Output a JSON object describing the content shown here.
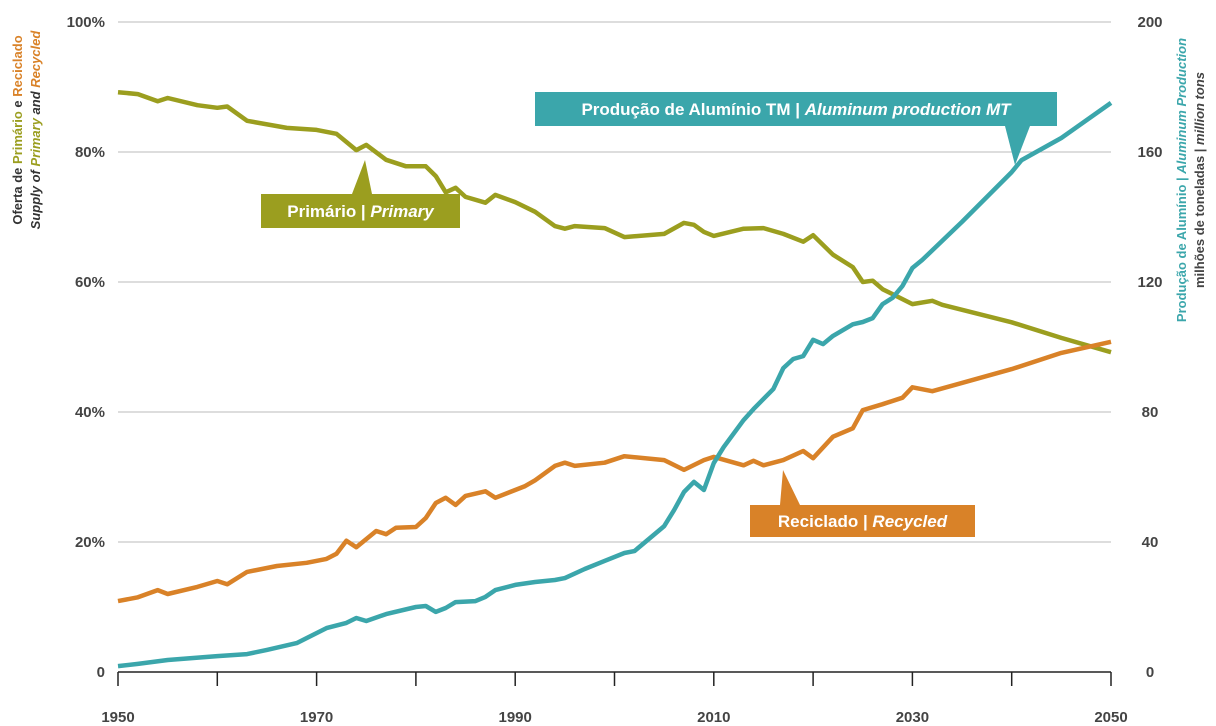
{
  "chart_data": {
    "type": "line",
    "y_title": [
      [
        {
          "text": "Oferta de ",
          "color": "#333333",
          "italic": false
        },
        {
          "text": "Primário",
          "color": "#9b9e1f",
          "italic": false
        },
        {
          "text": " e ",
          "color": "#333333",
          "italic": false
        },
        {
          "text": "Reciclado",
          "color": "#d98228",
          "italic": false
        }
      ],
      [
        {
          "text": "Supply  of ",
          "color": "#333333",
          "italic": true
        },
        {
          "text": "Primary",
          "color": "#9b9e1f",
          "italic": true
        },
        {
          "text": " and ",
          "color": "#333333",
          "italic": true
        },
        {
          "text": "Recycled",
          "color": "#d98228",
          "italic": true
        }
      ]
    ],
    "y2_title": [
      [
        {
          "text": "Produção de Alumínio | ",
          "color": "#3ba6ab",
          "italic": false
        },
        {
          "text": "Aluminum Production",
          "color": "#3ba6ab",
          "italic": true
        }
      ],
      [
        {
          "text": "milhões de toneladas | ",
          "color": "#444444",
          "italic": false
        },
        {
          "text": "million tons",
          "color": "#444444",
          "italic": true
        }
      ]
    ],
    "xlim": [
      1950,
      2050
    ],
    "xticks": [
      1950,
      1970,
      1990,
      2010,
      2030,
      2050
    ],
    "xminorticks": [
      1960,
      1980,
      2000,
      2020,
      2040
    ],
    "ylim": [
      0,
      100
    ],
    "yticks": [
      {
        "value": 0,
        "label": "0"
      },
      {
        "value": 20,
        "label": "20%"
      },
      {
        "value": 40,
        "label": "40%"
      },
      {
        "value": 60,
        "label": "60%"
      },
      {
        "value": 80,
        "label": "80%"
      },
      {
        "value": 100,
        "label": "100%"
      }
    ],
    "y2lim": [
      0,
      200
    ],
    "y2ticks": [
      0,
      40,
      80,
      120,
      160,
      200
    ],
    "grid": true,
    "series": [
      {
        "name": [
          "Primário | ",
          "Primary"
        ],
        "color": "#9b9e1f",
        "x": [
          1950,
          1952,
          1954,
          1955,
          1958,
          1960,
          1961,
          1963,
          1967,
          1970,
          1972,
          1974,
          1975,
          1977,
          1979,
          1981,
          1982,
          1983,
          1984,
          1985,
          1987,
          1988,
          1990,
          1992,
          1994,
          1995,
          1996,
          1999,
          2001,
          2005,
          2007,
          2008,
          2009,
          2010,
          2013,
          2015,
          2017,
          2019,
          2020,
          2022,
          2024,
          2025,
          2026,
          2027,
          2030,
          2032,
          2033,
          2040,
          2045,
          2050
        ],
        "values": [
          89.2,
          88.9,
          87.8,
          88.3,
          87.2,
          86.8,
          87,
          84.8,
          83.7,
          83.4,
          82.8,
          80.3,
          81.1,
          78.8,
          77.8,
          77.8,
          76.3,
          73.8,
          74.5,
          73.1,
          72.2,
          73.4,
          72.3,
          70.8,
          68.6,
          68.2,
          68.6,
          68.3,
          66.9,
          67.4,
          69.1,
          68.8,
          67.7,
          67.1,
          68.2,
          68.3,
          67.4,
          66.2,
          67.2,
          64.2,
          62.3,
          60,
          60.2,
          58.9,
          56.6,
          57.1,
          56.5,
          53.8,
          51.4,
          49.2
        ]
      },
      {
        "name": [
          "Reciclado | ",
          "Recycled"
        ],
        "color": "#d98228",
        "x": [
          1950,
          1952,
          1954,
          1955,
          1958,
          1960,
          1961,
          1963,
          1966,
          1969,
          1971,
          1972,
          1973,
          1974,
          1976,
          1977,
          1978,
          1980,
          1981,
          1982,
          1983,
          1984,
          1985,
          1987,
          1988,
          1990,
          1991,
          1992,
          1994,
          1995,
          1996,
          1999,
          2001,
          2005,
          2007,
          2009,
          2010,
          2013,
          2014,
          2015,
          2017,
          2019,
          2020,
          2022,
          2024,
          2025,
          2027,
          2029,
          2030,
          2032,
          2040,
          2045,
          2050
        ],
        "values": [
          10.9,
          11.5,
          12.6,
          12,
          13.1,
          14,
          13.5,
          15.4,
          16.3,
          16.8,
          17.4,
          18.2,
          20.2,
          19.2,
          21.7,
          21.2,
          22.2,
          22.3,
          23.7,
          26,
          26.8,
          25.7,
          27.1,
          27.8,
          26.8,
          28,
          28.6,
          29.5,
          31.7,
          32.2,
          31.7,
          32.2,
          33.2,
          32.6,
          31.1,
          32.6,
          33.1,
          31.8,
          32.5,
          31.8,
          32.6,
          34,
          32.9,
          36.2,
          37.5,
          40.3,
          41.2,
          42.2,
          43.8,
          43.2,
          46.6,
          49.1,
          50.8
        ]
      },
      {
        "name": [
          "Produção de Alumínio TM | ",
          "Aluminum production MT"
        ],
        "color": "#3ba6ab",
        "axis": "y2",
        "x": [
          1950,
          1952,
          1955,
          1960,
          1963,
          1965,
          1968,
          1971,
          1973,
          1974,
          1975,
          1977,
          1980,
          1981,
          1982,
          1983,
          1984,
          1986,
          1987,
          1988,
          1990,
          1992,
          1994,
          1995,
          1997,
          1999,
          2001,
          2002,
          2005,
          2006,
          2007,
          2008,
          2009,
          2010,
          2011,
          2013,
          2014,
          2016,
          2017,
          2018,
          2019,
          2020,
          2021,
          2022,
          2024,
          2025,
          2026,
          2027,
          2028,
          2029,
          2030,
          2031,
          2035,
          2040,
          2041,
          2045,
          2050
        ],
        "values": [
          1.8,
          2.5,
          3.7,
          4.9,
          5.5,
          6.8,
          8.9,
          13.5,
          15.1,
          16.6,
          15.7,
          17.8,
          20,
          20.3,
          18.5,
          19.7,
          21.5,
          21.8,
          23.1,
          25.2,
          26.8,
          27.7,
          28.3,
          28.9,
          31.7,
          34.2,
          36.6,
          37.2,
          44.9,
          49.8,
          55.4,
          58.5,
          56,
          64.3,
          69.2,
          77.5,
          80.9,
          87.1,
          93.5,
          96.3,
          97.2,
          102.2,
          100.9,
          103.4,
          107,
          107.7,
          108.9,
          113.2,
          115.1,
          118.8,
          124.3,
          126.8,
          138.5,
          153.8,
          157.5,
          164.3,
          175.1
        ]
      }
    ]
  }
}
